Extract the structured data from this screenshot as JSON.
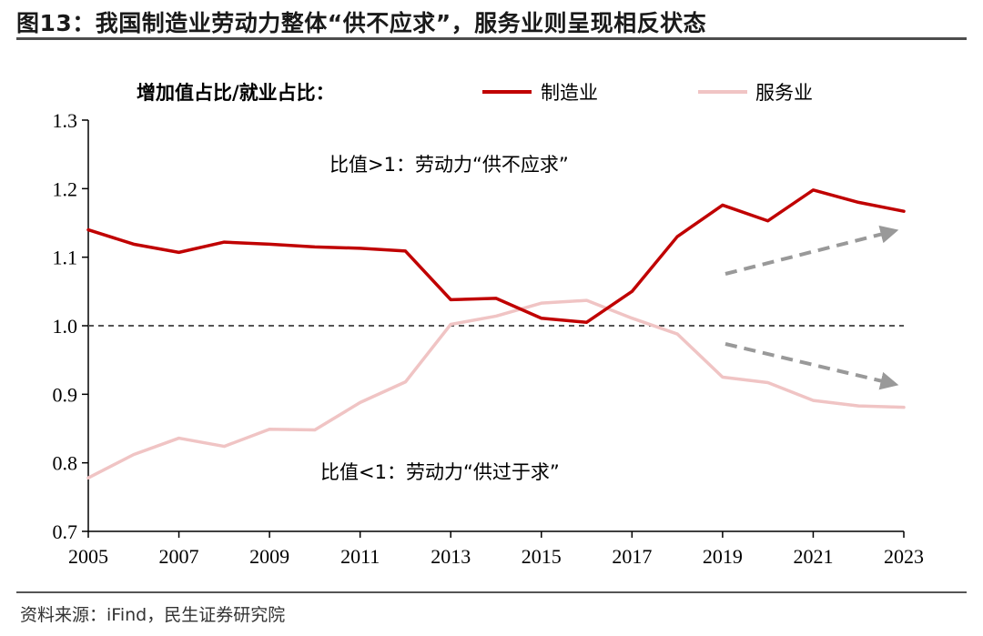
{
  "figure": {
    "title": "图13：我国制造业劳动力整体“供不应求”，服务业则呈现相反状态",
    "source": "资料来源：iFind，民生证券研究院"
  },
  "chart_data": {
    "type": "line",
    "legend_label": "增加值占比/就业占比：",
    "legend_position": "top",
    "x": [
      2005,
      2006,
      2007,
      2008,
      2009,
      2010,
      2011,
      2012,
      2013,
      2014,
      2015,
      2016,
      2017,
      2018,
      2019,
      2020,
      2021,
      2022,
      2023
    ],
    "x_ticks": [
      "2005",
      "2007",
      "2009",
      "2011",
      "2013",
      "2015",
      "2017",
      "2019",
      "2021",
      "2023"
    ],
    "y_ticks": [
      "0.7",
      "0.8",
      "0.9",
      "1.0",
      "1.1",
      "1.2",
      "1.3"
    ],
    "ylim": [
      0.7,
      1.3
    ],
    "xlim": [
      2005,
      2023
    ],
    "grid": false,
    "series": [
      {
        "name": "制造业",
        "color": "#c00000",
        "values": [
          1.14,
          1.119,
          1.107,
          1.122,
          1.119,
          1.115,
          1.113,
          1.109,
          1.038,
          1.04,
          1.011,
          1.005,
          1.05,
          1.13,
          1.176,
          1.153,
          1.198,
          1.18,
          1.167
        ]
      },
      {
        "name": "服务业",
        "color": "#f0c4c4",
        "values": [
          0.778,
          0.812,
          0.836,
          0.824,
          0.849,
          0.848,
          0.888,
          0.918,
          1.002,
          1.014,
          1.033,
          1.037,
          1.011,
          0.988,
          0.925,
          0.917,
          0.891,
          0.883,
          0.881
        ]
      }
    ],
    "reference_line": {
      "y": 1.0,
      "style": "dashed",
      "color": "#555555"
    },
    "annotations": {
      "above": "比值>1：劳动力“供不应求”",
      "below": "比值<1：劳动力“供过于求”"
    },
    "arrow_color": "#999999"
  }
}
